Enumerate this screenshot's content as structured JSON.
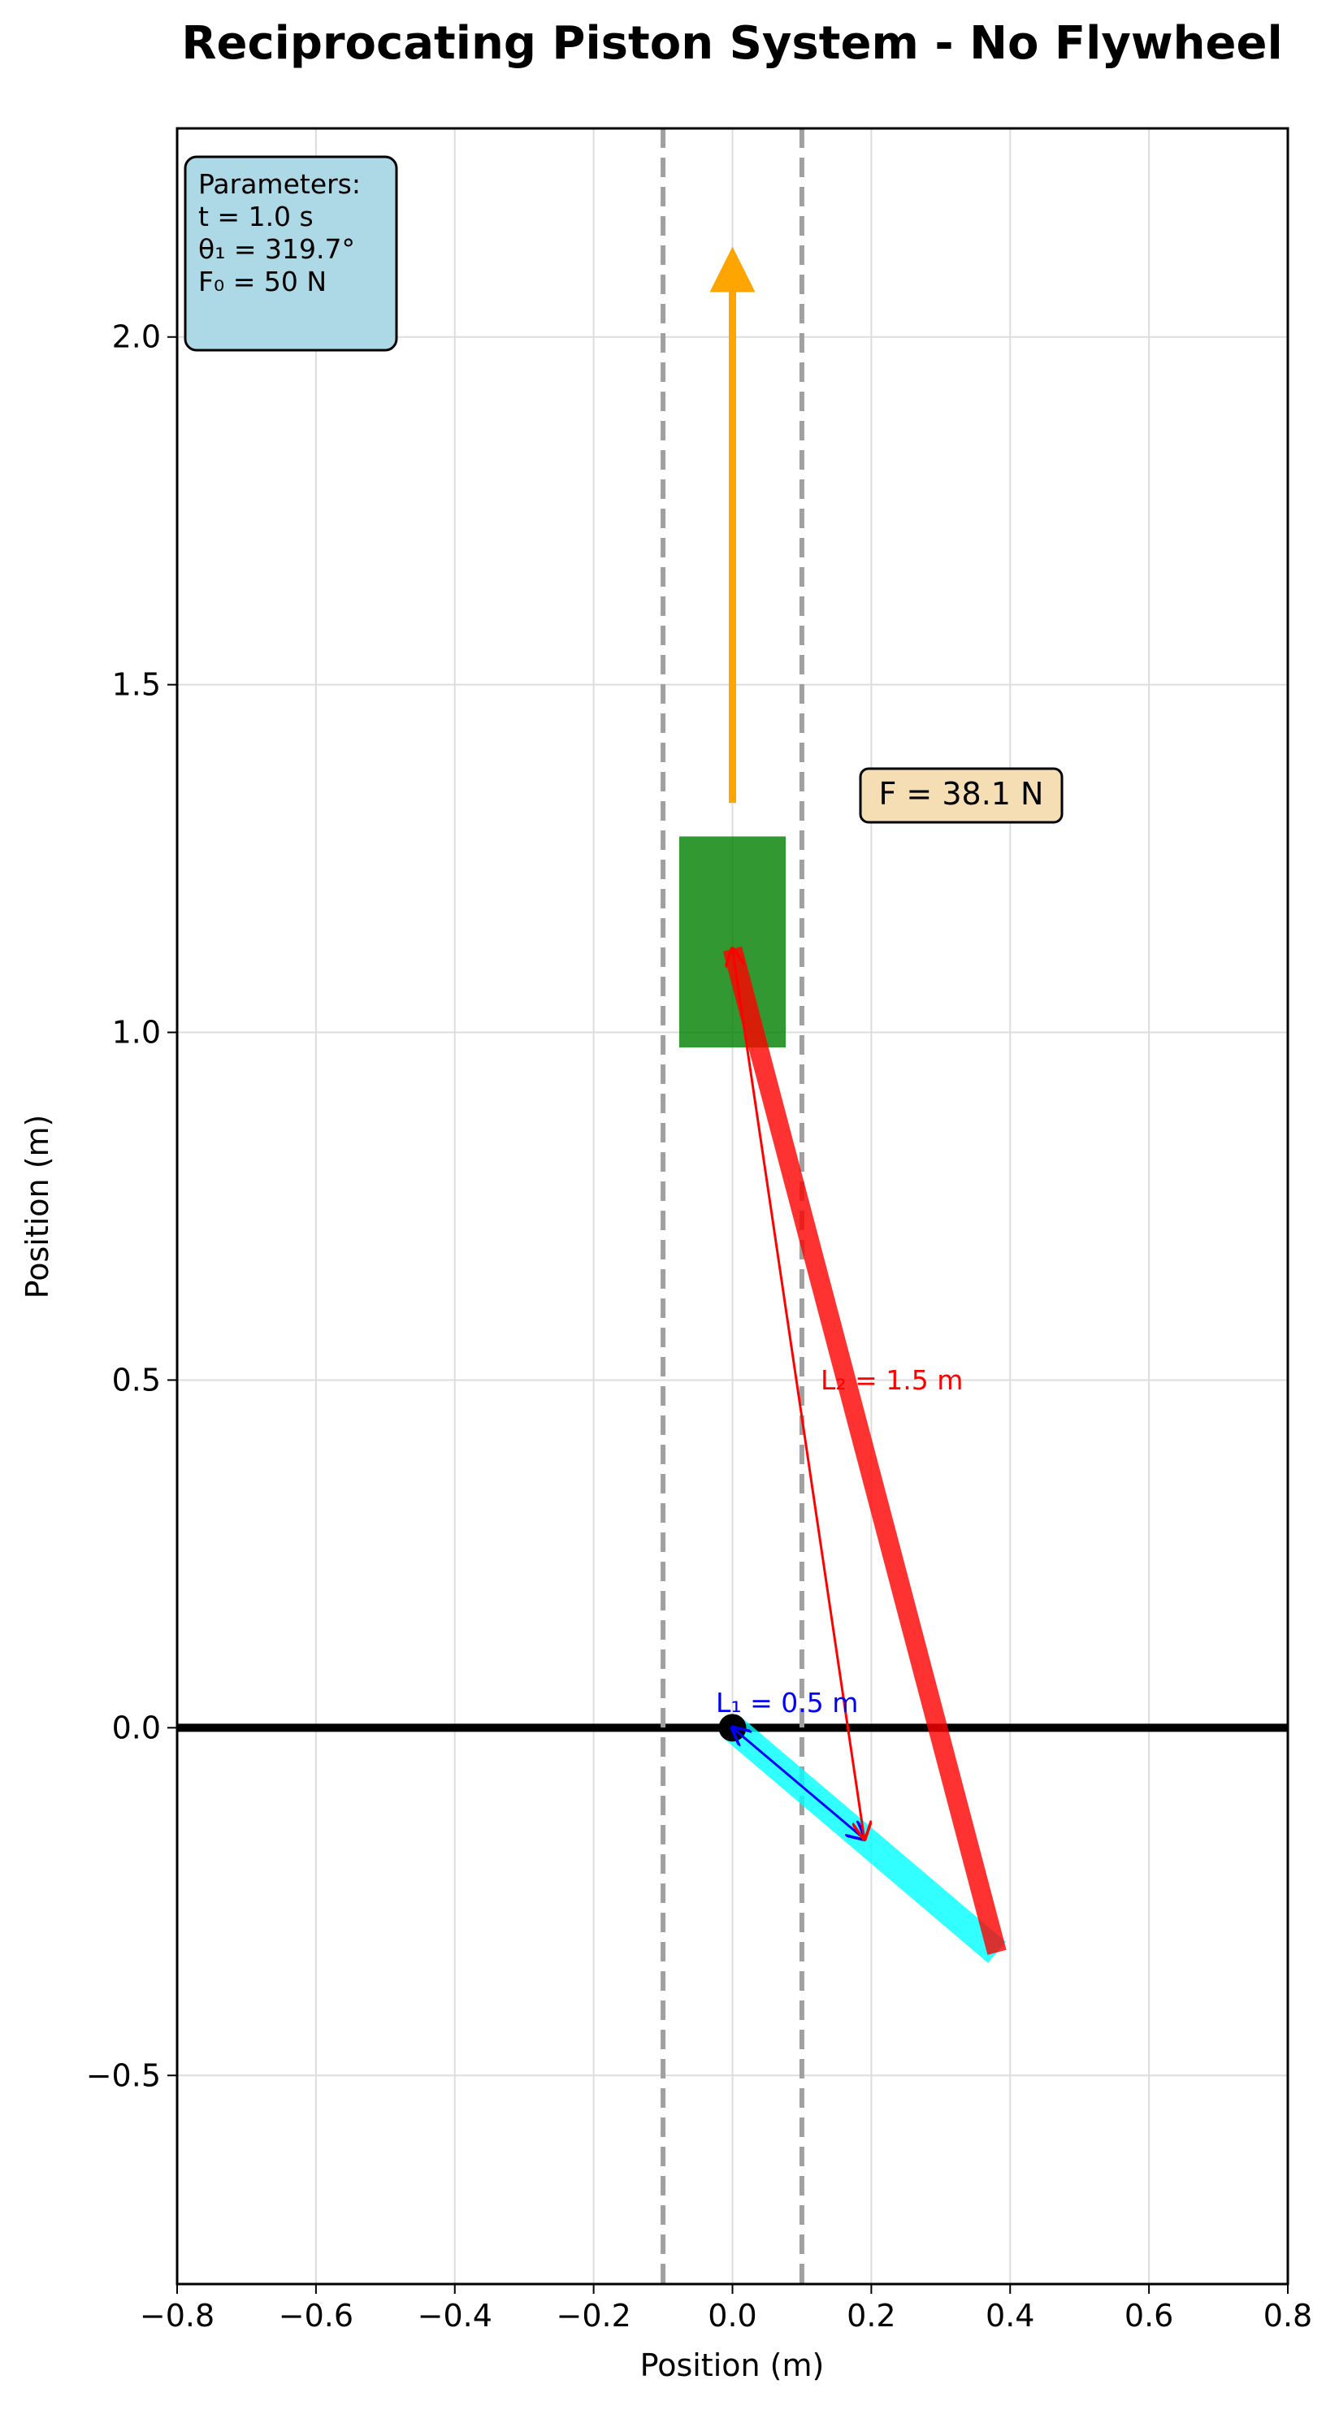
{
  "title": "Reciprocating Piston System - No Flywheel",
  "xlabel": "Position (m)",
  "ylabel": "Position (m)",
  "axes": {
    "xlim": [
      -0.8,
      0.8
    ],
    "ylim": [
      -0.8,
      2.3
    ],
    "xticks": [
      -0.8,
      -0.6,
      -0.4,
      -0.2,
      0.0,
      0.2,
      0.4,
      0.6,
      0.8
    ],
    "xtick_labels": [
      "−0.8",
      "−0.6",
      "−0.4",
      "−0.2",
      "0.0",
      "0.2",
      "0.4",
      "0.6",
      "0.8"
    ],
    "yticks": [
      -0.5,
      0.0,
      0.5,
      1.0,
      1.5,
      2.0
    ],
    "ytick_labels": [
      "−0.5",
      "0.0",
      "0.5",
      "1.0",
      "1.5",
      "2.0"
    ],
    "grid": true
  },
  "parameters": {
    "heading": "Parameters:",
    "line1": "t = 1.0 s",
    "line2": "θ₁ = 319.7°",
    "line3": "F₀ = 50 N"
  },
  "force_label": "F = 38.1 N",
  "L1_label": "L₁ = 0.5 m",
  "L2_label": "L₂ = 1.5 m",
  "mechanism": {
    "pivot": [
      0.0,
      0.0
    ],
    "crank_end": [
      0.381,
      -0.323
    ],
    "piston_pin": [
      0.0,
      1.12
    ],
    "piston_center": [
      0.0,
      1.13
    ],
    "piston_width": 0.15,
    "piston_height": 0.3,
    "guide_x": [
      -0.1,
      0.1
    ],
    "ground_y": 0.0,
    "force_arrow_from": [
      0.0,
      1.33
    ],
    "force_arrow_to": [
      0.0,
      2.13
    ],
    "L1_dim_from": [
      0.0,
      0.0
    ],
    "L1_dim_to": [
      0.19,
      -0.16
    ],
    "L2_dim_from": [
      0.19,
      -0.16
    ],
    "L2_dim_to": [
      0.0,
      1.12
    ]
  },
  "colors": {
    "crank": "#00ffff",
    "rod": "#ff0000",
    "piston": "#008000",
    "force": "#ffa500",
    "guide": "#a0a0a0",
    "params_bg": "#add8e6",
    "force_bg": "#f5deb3",
    "L1": "#0000ff",
    "L2": "#ff0000"
  }
}
